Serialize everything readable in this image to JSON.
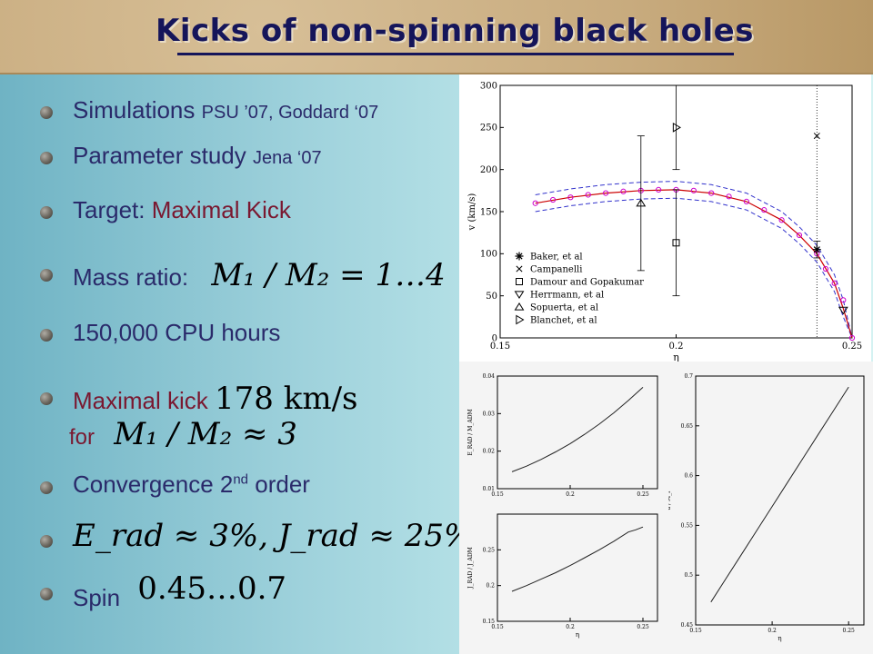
{
  "slide": {
    "title": "Kicks of non-spinning black holes",
    "bullets": {
      "b1_main": "Simulations",
      "b1_ref": "PSU ’07,  Goddard ‘07",
      "b2_main": "Parameter study",
      "b2_ref": "Jena ‘07",
      "b3_label": "Target:",
      "b3_value": "Maximal Kick",
      "b4_label": "Mass ratio:",
      "b4_formula": "M₁ / M₂ = 1…4",
      "b5_text": "150,000 CPU hours",
      "b6_label": "Maximal kick",
      "b6_value": "178 km/s",
      "b6_for": "for",
      "b6_formula": "M₁ / M₂ ≈ 3",
      "b7_text": "Convergence 2",
      "b7_sup": "nd",
      "b7_tail": "order",
      "b8_formula": "E_rad ≈ 3%,  J_rad ≈ 25%",
      "b9_label": "Spin",
      "b9_value": "0.45…0.7"
    }
  },
  "colors": {
    "title": "#15155a",
    "text": "#2a2a6a",
    "accent": "#7a1830",
    "fit_line": "#cc0000",
    "band": "#3333cc",
    "points": "#cc00cc"
  },
  "chart_data": [
    {
      "type": "scatter",
      "xlabel": "η",
      "ylabel": "v (km/s)",
      "xlim": [
        0.15,
        0.25
      ],
      "ylim": [
        0,
        300
      ],
      "xticks": [
        "0.15",
        "0.2",
        "0.25"
      ],
      "yticks": [
        "0",
        "50",
        "100",
        "150",
        "200",
        "250",
        "300"
      ],
      "legend_position": "bottom-left",
      "legend": [
        "Baker, et al",
        "Campanelli",
        "Damour and Gopakumar",
        "Herrmann, et al",
        "Sopuerta, et al",
        "Blanchet, et al"
      ],
      "fit_x": [
        0.16,
        0.17,
        0.18,
        0.19,
        0.2,
        0.21,
        0.22,
        0.23,
        0.235,
        0.24,
        0.245,
        0.2475,
        0.25
      ],
      "fit_y": [
        160,
        167,
        172,
        175,
        176,
        172,
        162,
        140,
        122,
        100,
        65,
        35,
        0
      ],
      "series": [
        {
          "name": "Baker, et al",
          "x": [
            0.24
          ],
          "y": [
            105
          ],
          "err": [
            10
          ]
        },
        {
          "name": "Campanelli",
          "x": [
            0.24
          ],
          "y": [
            240
          ],
          "err": []
        },
        {
          "name": "Damour and Gopakumar",
          "x": [
            0.2
          ],
          "y": [
            113
          ],
          "err": [
            63
          ]
        },
        {
          "name": "Herrmann, et al",
          "x": [
            0.2475
          ],
          "y": [
            33
          ],
          "err": []
        },
        {
          "name": "Sopuerta, et al",
          "x": [
            0.19
          ],
          "y": [
            160
          ],
          "err": [
            80
          ]
        },
        {
          "name": "Blanchet, et al",
          "x": [
            0.2
          ],
          "y": [
            250
          ],
          "err": [
            50
          ]
        }
      ],
      "nr_points_x": [
        0.16,
        0.165,
        0.17,
        0.175,
        0.18,
        0.185,
        0.19,
        0.195,
        0.2,
        0.205,
        0.21,
        0.215,
        0.22,
        0.225,
        0.23,
        0.235,
        0.24,
        0.2425,
        0.245,
        0.2475,
        0.25
      ],
      "nr_points_y": [
        160,
        164,
        167,
        170,
        172,
        174,
        175,
        176,
        176,
        175,
        172,
        168,
        162,
        152,
        140,
        122,
        100,
        82,
        65,
        45,
        0
      ]
    },
    {
      "type": "line",
      "xlabel": "η",
      "ylabel": "E_RAD / M_ADM",
      "xlim": [
        0.15,
        0.26
      ],
      "ylim": [
        0.01,
        0.04
      ],
      "xticks": [
        "0.15",
        "0.2",
        "0.25"
      ],
      "yticks": [
        "0.01",
        "0.02",
        "0.03",
        "0.04"
      ],
      "x": [
        0.16,
        0.17,
        0.18,
        0.19,
        0.2,
        0.21,
        0.22,
        0.23,
        0.24,
        0.25
      ],
      "y": [
        0.0145,
        0.016,
        0.0178,
        0.0198,
        0.022,
        0.0245,
        0.0272,
        0.0302,
        0.0335,
        0.037
      ]
    },
    {
      "type": "line",
      "xlabel": "η",
      "ylabel": "J_RAD / J_ADM",
      "xlim": [
        0.15,
        0.26
      ],
      "ylim": [
        0.15,
        0.3
      ],
      "xticks": [
        "0.15",
        "0.2",
        "0.25"
      ],
      "yticks": [
        "0.15",
        "0.2",
        "0.25"
      ],
      "x": [
        0.16,
        0.17,
        0.18,
        0.19,
        0.2,
        0.21,
        0.22,
        0.23,
        0.24,
        0.245,
        0.25
      ],
      "y": [
        0.192,
        0.2,
        0.209,
        0.218,
        0.228,
        0.239,
        0.25,
        0.262,
        0.275,
        0.278,
        0.282
      ]
    },
    {
      "type": "line",
      "xlabel": "η",
      "ylabel": "a / M_f",
      "xlim": [
        0.15,
        0.26
      ],
      "ylim": [
        0.45,
        0.7
      ],
      "xticks": [
        "0.15",
        "0.2",
        "0.25"
      ],
      "yticks": [
        "0.45",
        "0.5",
        "0.55",
        "0.6",
        "0.65",
        "0.7"
      ],
      "x": [
        0.16,
        0.17,
        0.18,
        0.19,
        0.2,
        0.21,
        0.22,
        0.23,
        0.24,
        0.25
      ],
      "y": [
        0.473,
        0.497,
        0.521,
        0.545,
        0.569,
        0.593,
        0.617,
        0.641,
        0.665,
        0.689
      ]
    }
  ]
}
